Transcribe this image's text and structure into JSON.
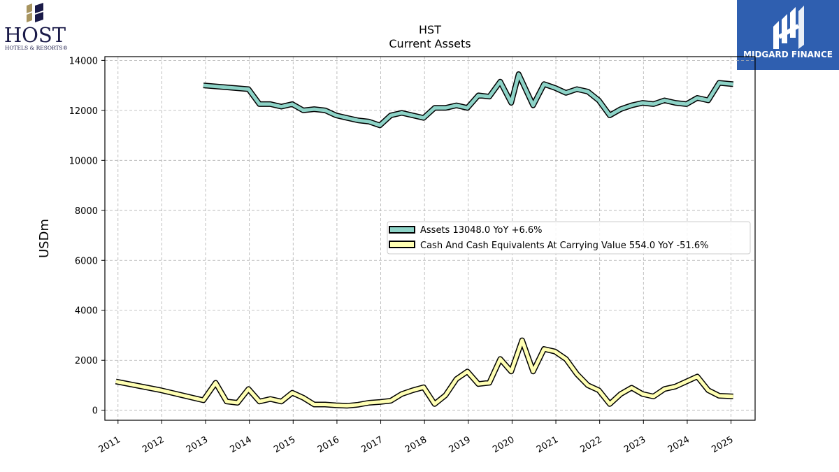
{
  "branding": {
    "host_logo": {
      "name": "HOST",
      "tagline": "HOTELS & RESORTS®"
    },
    "midgard_logo": {
      "name": "MIDGARD FINANCE"
    }
  },
  "colors": {
    "assets": "#8dd3c7",
    "cash": "#ffffb3",
    "outline": "#000000",
    "grid": "#b0b0b0",
    "host_navy": "#1a1a48",
    "host_gold": "#a89560",
    "midgard_blue": "#2f5fb0"
  },
  "chart_data": {
    "type": "line",
    "title": "HST",
    "subtitle": "Current  Assets",
    "ylabel": "USDm",
    "xlabel": "",
    "xlim": [
      2010.7,
      2025.55
    ],
    "ylim": [
      -400,
      14150
    ],
    "yticks": [
      0,
      2000,
      4000,
      6000,
      8000,
      10000,
      12000,
      14000
    ],
    "xticks": [
      "2011",
      "2012",
      "2013",
      "2014",
      "2015",
      "2016",
      "2017",
      "2018",
      "2019",
      "2020",
      "2021",
      "2022",
      "2023",
      "2024",
      "2025"
    ],
    "grid": true,
    "legend_position": "center-right",
    "series": [
      {
        "name": "Assets  13048.0 YoY +6.6%",
        "color": "#8dd3c7",
        "points": [
          [
            2012.95,
            13000
          ],
          [
            2013.98,
            12850
          ],
          [
            2014.23,
            12250
          ],
          [
            2014.48,
            12250
          ],
          [
            2014.73,
            12150
          ],
          [
            2014.98,
            12250
          ],
          [
            2015.23,
            12000
          ],
          [
            2015.48,
            12050
          ],
          [
            2015.73,
            12000
          ],
          [
            2015.98,
            11800
          ],
          [
            2016.23,
            11700
          ],
          [
            2016.48,
            11600
          ],
          [
            2016.73,
            11550
          ],
          [
            2016.98,
            11400
          ],
          [
            2017.23,
            11800
          ],
          [
            2017.48,
            11900
          ],
          [
            2017.73,
            11800
          ],
          [
            2017.98,
            11700
          ],
          [
            2018.23,
            12100
          ],
          [
            2018.48,
            12100
          ],
          [
            2018.73,
            12200
          ],
          [
            2018.98,
            12100
          ],
          [
            2019.23,
            12600
          ],
          [
            2019.48,
            12550
          ],
          [
            2019.73,
            13150
          ],
          [
            2019.98,
            12300
          ],
          [
            2020.15,
            13450
          ],
          [
            2020.48,
            12200
          ],
          [
            2020.73,
            13050
          ],
          [
            2020.98,
            12900
          ],
          [
            2021.23,
            12700
          ],
          [
            2021.48,
            12850
          ],
          [
            2021.73,
            12750
          ],
          [
            2021.98,
            12400
          ],
          [
            2022.23,
            11800
          ],
          [
            2022.48,
            12050
          ],
          [
            2022.73,
            12200
          ],
          [
            2022.98,
            12300
          ],
          [
            2023.23,
            12250
          ],
          [
            2023.48,
            12400
          ],
          [
            2023.73,
            12300
          ],
          [
            2023.98,
            12250
          ],
          [
            2024.23,
            12500
          ],
          [
            2024.48,
            12400
          ],
          [
            2024.73,
            13100
          ],
          [
            2025.05,
            13048
          ]
        ]
      },
      {
        "name": "Cash And Cash Equivalents At Carrying Value  554.0 YoY -51.6%",
        "color": "#ffffb3",
        "points": [
          [
            2010.95,
            1150
          ],
          [
            2011.98,
            800
          ],
          [
            2012.95,
            400
          ],
          [
            2013.23,
            1100
          ],
          [
            2013.48,
            350
          ],
          [
            2013.73,
            300
          ],
          [
            2013.98,
            850
          ],
          [
            2014.23,
            350
          ],
          [
            2014.48,
            450
          ],
          [
            2014.73,
            350
          ],
          [
            2014.98,
            700
          ],
          [
            2015.23,
            500
          ],
          [
            2015.48,
            230
          ],
          [
            2015.73,
            230
          ],
          [
            2015.98,
            200
          ],
          [
            2016.23,
            180
          ],
          [
            2016.48,
            220
          ],
          [
            2016.73,
            300
          ],
          [
            2016.98,
            330
          ],
          [
            2017.23,
            380
          ],
          [
            2017.48,
            650
          ],
          [
            2017.73,
            800
          ],
          [
            2017.98,
            920
          ],
          [
            2018.23,
            250
          ],
          [
            2018.48,
            600
          ],
          [
            2018.73,
            1250
          ],
          [
            2018.98,
            1550
          ],
          [
            2019.23,
            1050
          ],
          [
            2019.48,
            1100
          ],
          [
            2019.73,
            2050
          ],
          [
            2019.98,
            1550
          ],
          [
            2020.23,
            2800
          ],
          [
            2020.48,
            1550
          ],
          [
            2020.73,
            2450
          ],
          [
            2020.98,
            2350
          ],
          [
            2021.23,
            2050
          ],
          [
            2021.48,
            1450
          ],
          [
            2021.73,
            1000
          ],
          [
            2021.98,
            800
          ],
          [
            2022.23,
            250
          ],
          [
            2022.48,
            650
          ],
          [
            2022.73,
            900
          ],
          [
            2022.98,
            650
          ],
          [
            2023.23,
            550
          ],
          [
            2023.48,
            850
          ],
          [
            2023.73,
            950
          ],
          [
            2023.98,
            1150
          ],
          [
            2024.23,
            1350
          ],
          [
            2024.48,
            800
          ],
          [
            2024.73,
            580
          ],
          [
            2025.05,
            554
          ]
        ]
      }
    ]
  }
}
